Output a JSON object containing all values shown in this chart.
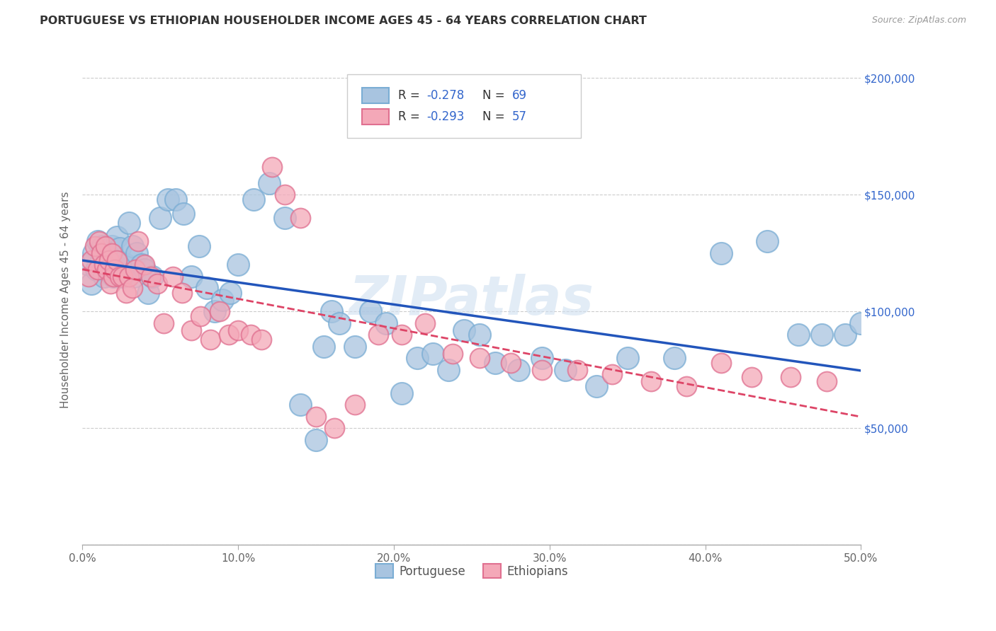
{
  "title": "PORTUGUESE VS ETHIOPIAN HOUSEHOLDER INCOME AGES 45 - 64 YEARS CORRELATION CHART",
  "source": "Source: ZipAtlas.com",
  "ylabel": "Householder Income Ages 45 - 64 years",
  "xlim": [
    0.0,
    0.5
  ],
  "ylim": [
    0,
    210000
  ],
  "xticks": [
    0.0,
    0.1,
    0.2,
    0.3,
    0.4,
    0.5
  ],
  "xticklabels": [
    "0.0%",
    "10.0%",
    "20.0%",
    "30.0%",
    "40.0%",
    "50.0%"
  ],
  "yticks": [
    0,
    50000,
    100000,
    150000,
    200000
  ],
  "yticklabels": [
    "",
    "$50,000",
    "$100,000",
    "$150,000",
    "$200,000"
  ],
  "portuguese_color": "#a8c4e0",
  "portuguese_edge": "#7aadd4",
  "ethiopian_color": "#f4a8b8",
  "ethiopian_edge": "#e07090",
  "portuguese_line_color": "#2255bb",
  "ethiopian_line_color": "#dd4466",
  "label_color": "#3366cc",
  "portuguese_R": -0.278,
  "portuguese_N": 69,
  "ethiopian_R": -0.293,
  "ethiopian_N": 57,
  "watermark": "ZIPatlas",
  "portuguese_x": [
    0.004,
    0.006,
    0.007,
    0.009,
    0.01,
    0.012,
    0.013,
    0.014,
    0.015,
    0.016,
    0.017,
    0.018,
    0.019,
    0.02,
    0.021,
    0.022,
    0.024,
    0.025,
    0.026,
    0.028,
    0.03,
    0.032,
    0.033,
    0.035,
    0.038,
    0.04,
    0.042,
    0.045,
    0.05,
    0.055,
    0.06,
    0.065,
    0.07,
    0.075,
    0.08,
    0.085,
    0.09,
    0.095,
    0.1,
    0.11,
    0.12,
    0.13,
    0.14,
    0.15,
    0.155,
    0.16,
    0.165,
    0.175,
    0.185,
    0.195,
    0.205,
    0.215,
    0.225,
    0.235,
    0.245,
    0.255,
    0.265,
    0.28,
    0.295,
    0.31,
    0.33,
    0.35,
    0.38,
    0.41,
    0.44,
    0.46,
    0.475,
    0.49,
    0.5
  ],
  "portuguese_y": [
    120000,
    112000,
    125000,
    118000,
    130000,
    122000,
    128000,
    115000,
    120000,
    125000,
    118000,
    122000,
    128000,
    115000,
    120000,
    132000,
    127000,
    121000,
    115000,
    120000,
    138000,
    128000,
    115000,
    125000,
    120000,
    118000,
    108000,
    115000,
    140000,
    148000,
    148000,
    142000,
    115000,
    128000,
    110000,
    100000,
    105000,
    108000,
    120000,
    148000,
    155000,
    140000,
    60000,
    45000,
    85000,
    100000,
    95000,
    85000,
    100000,
    95000,
    65000,
    80000,
    82000,
    75000,
    92000,
    90000,
    78000,
    75000,
    80000,
    75000,
    68000,
    80000,
    80000,
    125000,
    130000,
    90000,
    90000,
    90000,
    95000
  ],
  "ethiopian_x": [
    0.004,
    0.006,
    0.008,
    0.01,
    0.011,
    0.012,
    0.014,
    0.015,
    0.016,
    0.017,
    0.018,
    0.019,
    0.02,
    0.021,
    0.022,
    0.024,
    0.026,
    0.028,
    0.03,
    0.032,
    0.034,
    0.036,
    0.04,
    0.044,
    0.048,
    0.052,
    0.058,
    0.064,
    0.07,
    0.076,
    0.082,
    0.088,
    0.094,
    0.1,
    0.108,
    0.115,
    0.122,
    0.13,
    0.14,
    0.15,
    0.162,
    0.175,
    0.19,
    0.205,
    0.22,
    0.238,
    0.255,
    0.275,
    0.295,
    0.318,
    0.34,
    0.365,
    0.388,
    0.41,
    0.43,
    0.455,
    0.478
  ],
  "ethiopian_y": [
    115000,
    122000,
    128000,
    118000,
    130000,
    125000,
    120000,
    128000,
    118000,
    122000,
    112000,
    125000,
    115000,
    118000,
    122000,
    115000,
    115000,
    108000,
    115000,
    110000,
    118000,
    130000,
    120000,
    115000,
    112000,
    95000,
    115000,
    108000,
    92000,
    98000,
    88000,
    100000,
    90000,
    92000,
    90000,
    88000,
    162000,
    150000,
    140000,
    55000,
    50000,
    60000,
    90000,
    90000,
    95000,
    82000,
    80000,
    78000,
    75000,
    75000,
    73000,
    70000,
    68000,
    78000,
    72000,
    72000,
    70000
  ]
}
